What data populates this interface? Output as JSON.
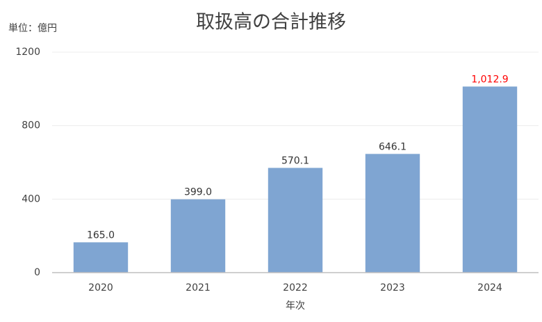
{
  "chart_data": {
    "type": "bar",
    "title": "取扱高の合計推移",
    "unit_label": "単位：億円",
    "x_label": "年次",
    "categories": [
      "2020",
      "2021",
      "2022",
      "2023",
      "2024"
    ],
    "values": [
      165.0,
      399.0,
      570.1,
      646.1,
      1012.9
    ],
    "value_labels": [
      "165.0",
      "399.0",
      "570.1",
      "646.1",
      "1,012.9"
    ],
    "value_label_colors": [
      "#333333",
      "#333333",
      "#333333",
      "#333333",
      "#ff0000"
    ],
    "color": "#7fa5d2",
    "ylim": [
      0,
      1200
    ],
    "yticks": [
      0,
      400,
      800,
      1200
    ],
    "grid": true
  }
}
